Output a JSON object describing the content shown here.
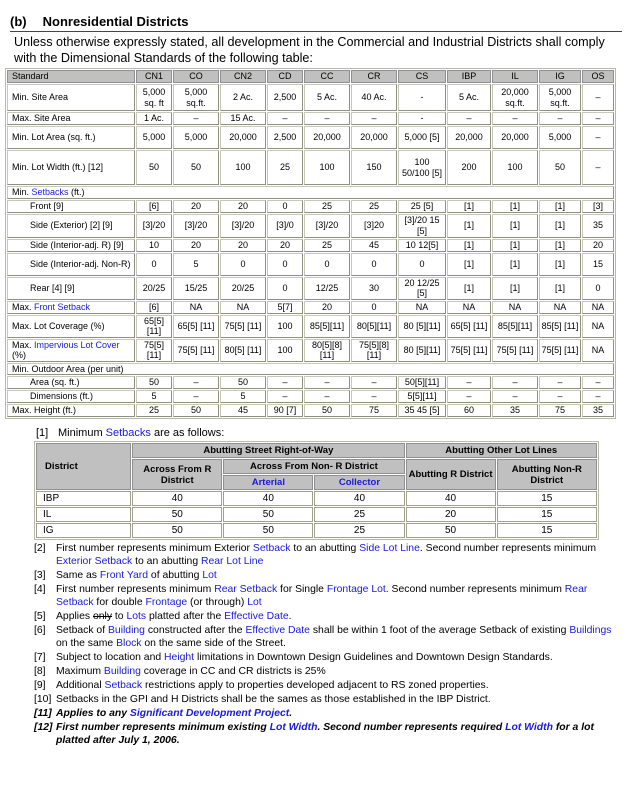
{
  "heading": {
    "num": "(b)",
    "title": "Nonresidential Districts"
  },
  "intro": "Unless otherwise expressly stated, all development in the Commercial and Industrial Districts shall comply with the Dimensional Standards of the following table:",
  "table": {
    "columns": [
      "Standard",
      "CN1",
      "CO",
      "CN2",
      "CD",
      "CC",
      "CR",
      "CS",
      "IBP",
      "IL",
      "IG",
      "OS"
    ],
    "rows": [
      {
        "label": "Min. Site Area",
        "h": 27,
        "cells": [
          "5,000 sq. ft",
          "5,000 sq.ft.",
          "2 Ac.",
          "2,500",
          "5 Ac.",
          "40 Ac.",
          "-",
          "5 Ac.",
          "20,000 sq.ft.",
          "5,000 sq.ft.",
          "–"
        ]
      },
      {
        "label": "Max. Site Area",
        "h": 11,
        "cells": [
          "1 Ac.",
          "–",
          "15 Ac.",
          "–",
          "–",
          "–",
          "-",
          "–",
          "–",
          "–",
          "–"
        ]
      },
      {
        "label": "Min. Lot Area (sq. ft.)",
        "h": 23,
        "cells": [
          "5,000",
          "5,000",
          "20,000",
          "2,500",
          "20,000",
          "20,000",
          "5,000 [5]",
          "20,000",
          "20,000",
          "5,000",
          "–"
        ]
      },
      {
        "label": "Min. Lot Width (ft.) [12]",
        "h": 35,
        "cells": [
          "50",
          "50",
          "100",
          "25",
          "100",
          "150",
          "100 50/100 [5]",
          "200",
          "100",
          "50",
          "–"
        ]
      },
      {
        "label": "Min. ",
        "link": "Setbacks",
        "after": " (ft.)",
        "section": true
      },
      {
        "label": "Front [9]",
        "indent": true,
        "h": 12,
        "cells": [
          "[6]",
          "20",
          "20",
          "0",
          "25",
          "25",
          "25 [5]",
          "[1]",
          "[1]",
          "[1]",
          "[3]"
        ]
      },
      {
        "label": "Side (Exterior) [2] [9]",
        "indent": true,
        "h": 24,
        "cells": [
          "[3]/20",
          "[3]/20",
          "[3]/20",
          "[3]/0",
          "[3]/20",
          "[3]20",
          "[3]/20 15 [5]",
          "[1]",
          "[1]",
          "[1]",
          "35"
        ]
      },
      {
        "label": "Side (Interior-adj. R) [9]",
        "indent": true,
        "h": 11,
        "cells": [
          "10",
          "20",
          "20",
          "20",
          "25",
          "45",
          "10 12[5]",
          "[1]",
          "[1]",
          "[1]",
          "20"
        ]
      },
      {
        "label": "Side (Interior-adj. Non-R)",
        "indent": true,
        "h": 23,
        "cells": [
          "0",
          "5",
          "0",
          "0",
          "0",
          "0",
          "0",
          "[1]",
          "[1]",
          "[1]",
          "15"
        ]
      },
      {
        "label": "Rear [4] [9]",
        "indent": true,
        "h": 23,
        "cells": [
          "20/25",
          "15/25",
          "20/25",
          "0",
          "12/25",
          "30",
          "20 12/25 [5]",
          "[1]",
          "[1]",
          "[1]",
          "0"
        ]
      },
      {
        "label": "Max. ",
        "link": "Front Setback",
        "h": 11,
        "cells": [
          "[6]",
          "NA",
          "NA",
          "5[7]",
          "20",
          "0",
          "NA",
          "NA",
          "NA",
          "NA",
          "NA"
        ]
      },
      {
        "label": "Max. Lot Coverage (%)",
        "h": 23,
        "cells": [
          "65[5] [11]",
          "65[5] [11]",
          "75[5] [11]",
          "100",
          "85[5][11]",
          "80[5][11]",
          "80 [5][11]",
          "65[5] [11]",
          "85[5][11]",
          "85[5] [11]",
          "NA"
        ]
      },
      {
        "label": "Max. ",
        "link": "Impervious Lot Cover",
        "after": " (%)",
        "h": 23,
        "cells": [
          "75[5] [11]",
          "75[5] [11]",
          "80[5] [11]",
          "100",
          "80[5][8] [11]",
          "75[5][8] [11]",
          "80 [5][11]",
          "75[5] [11]",
          "75[5] [11]",
          "75[5] [11]",
          "NA"
        ]
      },
      {
        "label": "Min. Outdoor Area (per unit)",
        "section": true
      },
      {
        "label": "Area (sq. ft.)",
        "indent": true,
        "h": 11,
        "cells": [
          "50",
          "–",
          "50",
          "–",
          "–",
          "–",
          "50[5][11]",
          "–",
          "–",
          "–",
          "–"
        ]
      },
      {
        "label": "Dimensions (ft.)",
        "indent": true,
        "h": 11,
        "cells": [
          "5",
          "–",
          "5",
          "–",
          "–",
          "–",
          "5[5][11]",
          "–",
          "–",
          "–",
          "–"
        ]
      },
      {
        "label": "Max. Height (ft.)",
        "h": 11,
        "cells": [
          "25",
          "50",
          "45",
          "90 [7]",
          "50",
          "75",
          "35 45 [5]",
          "60",
          "35",
          "75",
          "35"
        ]
      }
    ]
  },
  "setback_note": {
    "num": "[1]",
    "pre": "Minimum ",
    "link": "Setbacks",
    "post": " are as follows:"
  },
  "setback_table": {
    "district": "District",
    "street": "Abutting Street Right-of-Way",
    "other": "Abutting Other Lot Lines",
    "across_r": "Across From R District",
    "across_nonr": "Across From Non- R District",
    "arterial": "Arterial",
    "collector": "Collector",
    "abut_r": "Abutting R District",
    "abut_nonr": "Abutting Non-R District",
    "rows": [
      [
        "IBP",
        "40",
        "40",
        "40",
        "40",
        "15"
      ],
      [
        "IL",
        "50",
        "50",
        "25",
        "20",
        "15"
      ],
      [
        "IG",
        "50",
        "50",
        "25",
        "50",
        "15"
      ]
    ]
  },
  "footnotes": [
    {
      "num": "[2]",
      "segs": [
        {
          "t": "First number represents minimum Exterior "
        },
        {
          "t": "Setback",
          "l": 1
        },
        {
          "t": " to an abutting "
        },
        {
          "t": "Side Lot Line",
          "l": 1
        },
        {
          "t": ". Second number represents minimum "
        },
        {
          "t": "Exterior Setback",
          "l": 1
        },
        {
          "t": " to an abutting "
        },
        {
          "t": "Rear Lot Line",
          "l": 1
        }
      ]
    },
    {
      "num": "[3]",
      "segs": [
        {
          "t": "Same as "
        },
        {
          "t": "Front Yard",
          "l": 1
        },
        {
          "t": " of abutting "
        },
        {
          "t": "Lot",
          "l": 1
        }
      ]
    },
    {
      "num": "[4]",
      "segs": [
        {
          "t": "First number represents minimum "
        },
        {
          "t": "Rear Setback",
          "l": 1
        },
        {
          "t": " for Single "
        },
        {
          "t": "Frontage Lot",
          "l": 1
        },
        {
          "t": ".  Second number represents minimum "
        },
        {
          "t": "Rear Setback",
          "l": 1
        },
        {
          "t": " for double "
        },
        {
          "t": "Frontage",
          "l": 1
        },
        {
          "t": " (or through) "
        },
        {
          "t": "Lot",
          "l": 1
        }
      ]
    },
    {
      "num": "[5]",
      "segs": [
        {
          "t": "Applies "
        },
        {
          "t": "only",
          "s": 1
        },
        {
          "t": " to "
        },
        {
          "t": "Lots",
          "l": 1
        },
        {
          "t": " platted after the "
        },
        {
          "t": "Effective Date",
          "l": 1
        },
        {
          "t": "."
        }
      ]
    },
    {
      "num": "[6]",
      "segs": [
        {
          "t": "Setback of "
        },
        {
          "t": "Building",
          "l": 1
        },
        {
          "t": " constructed after the "
        },
        {
          "t": "Effective Date",
          "l": 1
        },
        {
          "t": " shall be within 1 foot of the average Setback of existing "
        },
        {
          "t": "Buildings",
          "l": 1
        },
        {
          "t": " on the same "
        },
        {
          "t": "Block",
          "l": 1
        },
        {
          "t": " on the same side of the Street."
        }
      ]
    },
    {
      "num": "[7]",
      "segs": [
        {
          "t": "Subject to location and "
        },
        {
          "t": "Height",
          "l": 1
        },
        {
          "t": " limitations in Downtown Design Guidelines and Downtown Design Standards."
        }
      ]
    },
    {
      "num": "[8]",
      "segs": [
        {
          "t": "Maximum "
        },
        {
          "t": "Building",
          "l": 1
        },
        {
          "t": " coverage in CC and CR districts is 25%"
        }
      ]
    },
    {
      "num": "[9]",
      "segs": [
        {
          "t": "Additional "
        },
        {
          "t": "Setback",
          "l": 1
        },
        {
          "t": " restrictions apply to properties developed adjacent to RS zoned properties."
        }
      ]
    },
    {
      "num": "[10]",
      "segs": [
        {
          "t": "Setbacks in the GPI and H Districts shall be the sames as those established in the IBP District."
        }
      ]
    },
    {
      "num": "[11]",
      "bold": true,
      "segs": [
        {
          "t": "Applies to any "
        },
        {
          "t": "Significant Development Project",
          "l": 1
        },
        {
          "t": "."
        }
      ]
    },
    {
      "num": "[12]",
      "bold": true,
      "segs": [
        {
          "t": "First number represents minimum existing "
        },
        {
          "t": "Lot Width",
          "l": 1
        },
        {
          "t": ".  Second number represents required "
        },
        {
          "t": "Lot Width",
          "l": 1
        },
        {
          "t": " for a lot platted after July 1, 2006."
        }
      ]
    }
  ]
}
